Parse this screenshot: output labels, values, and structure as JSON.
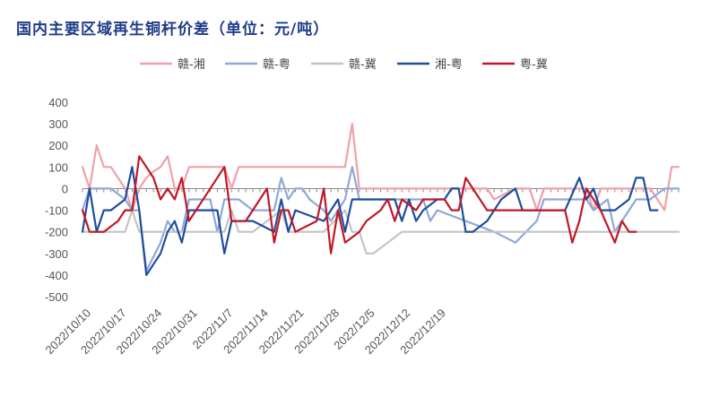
{
  "chart_data": {
    "type": "line",
    "title": "国内主要区域再生铜杆价差（单位：元/吨）",
    "legend_position": "top",
    "grid": false,
    "ylim": [
      -500,
      400
    ],
    "yticks": [
      400,
      300,
      200,
      100,
      0,
      -100,
      -200,
      -300,
      -400,
      -500
    ],
    "xtick_labels": [
      "2022/10/10",
      "2022/10/17",
      "2022/10/24",
      "2022/10/31",
      "2022/11/7",
      "2022/11/14",
      "2022/11/21",
      "2022/11/28",
      "2022/12/5",
      "2022/12/12",
      "2022/12/19"
    ],
    "series": [
      {
        "name": "赣-湘",
        "color": "#f0a0a8",
        "points": [
          [
            0,
            100
          ],
          [
            1,
            0
          ],
          [
            2,
            200
          ],
          [
            3,
            100
          ],
          [
            4,
            100
          ],
          [
            6,
            0
          ],
          [
            7,
            -100
          ],
          [
            8,
            0
          ],
          [
            9,
            50
          ],
          [
            10,
            80
          ],
          [
            11,
            100
          ],
          [
            12,
            150
          ],
          [
            13,
            0
          ],
          [
            14,
            0
          ],
          [
            15,
            100
          ],
          [
            20,
            100
          ],
          [
            21,
            0
          ],
          [
            22,
            100
          ],
          [
            37,
            100
          ],
          [
            38,
            300
          ],
          [
            39,
            0
          ],
          [
            54,
            0
          ],
          [
            57,
            0
          ],
          [
            58,
            -50
          ],
          [
            61,
            0
          ],
          [
            63,
            0
          ],
          [
            64,
            -100
          ],
          [
            65,
            0
          ],
          [
            71,
            0
          ],
          [
            72,
            -100
          ],
          [
            73,
            0
          ],
          [
            77,
            0
          ],
          [
            80,
            0
          ],
          [
            81,
            -50
          ],
          [
            82,
            -100
          ],
          [
            83,
            100
          ],
          [
            84,
            100
          ]
        ]
      },
      {
        "name": "赣-粤",
        "color": "#8fa8d8",
        "points": [
          [
            0,
            -100
          ],
          [
            1,
            0
          ],
          [
            4,
            0
          ],
          [
            6,
            -50
          ],
          [
            7,
            -100
          ],
          [
            8,
            -100
          ],
          [
            9,
            -380
          ],
          [
            11,
            -250
          ],
          [
            12,
            -150
          ],
          [
            13,
            -200
          ],
          [
            14,
            -200
          ],
          [
            15,
            -50
          ],
          [
            18,
            -50
          ],
          [
            19,
            -200
          ],
          [
            20,
            -50
          ],
          [
            22,
            -50
          ],
          [
            24,
            -100
          ],
          [
            27,
            -100
          ],
          [
            28,
            50
          ],
          [
            29,
            -50
          ],
          [
            30,
            0
          ],
          [
            31,
            0
          ],
          [
            32,
            -50
          ],
          [
            34,
            -100
          ],
          [
            35,
            -150
          ],
          [
            37,
            -50
          ],
          [
            38,
            100
          ],
          [
            39,
            -50
          ],
          [
            48,
            -50
          ],
          [
            49,
            -150
          ],
          [
            50,
            -100
          ],
          [
            58,
            -200
          ],
          [
            61,
            -250
          ],
          [
            64,
            -150
          ],
          [
            65,
            -50
          ],
          [
            71,
            -50
          ],
          [
            72,
            -100
          ],
          [
            74,
            -50
          ],
          [
            75,
            -200
          ],
          [
            77,
            -100
          ],
          [
            78,
            -50
          ],
          [
            79,
            -50
          ],
          [
            80,
            -50
          ],
          [
            82,
            0
          ],
          [
            84,
            0
          ]
        ]
      },
      {
        "name": "赣-冀",
        "color": "#c4c4c4",
        "points": [
          [
            0,
            -200
          ],
          [
            6,
            -200
          ],
          [
            7,
            -100
          ],
          [
            8,
            -200
          ],
          [
            20,
            -200
          ],
          [
            21,
            -100
          ],
          [
            22,
            -200
          ],
          [
            24,
            -200
          ],
          [
            28,
            -100
          ],
          [
            29,
            -200
          ],
          [
            34,
            -200
          ],
          [
            37,
            -100
          ],
          [
            38,
            -200
          ],
          [
            39,
            -200
          ],
          [
            40,
            -300
          ],
          [
            41,
            -300
          ],
          [
            43,
            -250
          ],
          [
            45,
            -200
          ],
          [
            84,
            -200
          ]
        ]
      },
      {
        "name": "湘-粤",
        "color": "#1f4e9c",
        "points": [
          [
            0,
            -200
          ],
          [
            1,
            0
          ],
          [
            2,
            -200
          ],
          [
            3,
            -100
          ],
          [
            4,
            -100
          ],
          [
            6,
            -50
          ],
          [
            7,
            100
          ],
          [
            8,
            -100
          ],
          [
            9,
            -400
          ],
          [
            11,
            -300
          ],
          [
            12,
            -200
          ],
          [
            13,
            -150
          ],
          [
            14,
            -250
          ],
          [
            15,
            -100
          ],
          [
            19,
            -100
          ],
          [
            20,
            -300
          ],
          [
            21,
            -150
          ],
          [
            24,
            -150
          ],
          [
            27,
            -200
          ],
          [
            28,
            -50
          ],
          [
            29,
            -200
          ],
          [
            30,
            -100
          ],
          [
            34,
            -150
          ],
          [
            35,
            -100
          ],
          [
            36,
            -50
          ],
          [
            37,
            -200
          ],
          [
            38,
            -50
          ],
          [
            39,
            -50
          ],
          [
            44,
            -50
          ],
          [
            45,
            -150
          ],
          [
            46,
            -50
          ],
          [
            47,
            -150
          ],
          [
            48,
            -100
          ],
          [
            50,
            -50
          ],
          [
            51,
            -50
          ],
          [
            52,
            0
          ],
          [
            53,
            0
          ],
          [
            54,
            -200
          ],
          [
            55,
            -200
          ],
          [
            57,
            -150
          ],
          [
            58,
            -100
          ],
          [
            59,
            -50
          ],
          [
            61,
            0
          ],
          [
            62,
            -100
          ],
          [
            68,
            -100
          ],
          [
            70,
            50
          ],
          [
            71,
            -50
          ],
          [
            72,
            0
          ],
          [
            73,
            -100
          ],
          [
            75,
            -100
          ],
          [
            77,
            -50
          ],
          [
            78,
            50
          ],
          [
            79,
            50
          ],
          [
            80,
            -100
          ],
          [
            81,
            -100
          ]
        ]
      },
      {
        "name": "粤-冀",
        "color": "#c01828",
        "points": [
          [
            0,
            -100
          ],
          [
            1,
            -200
          ],
          [
            3,
            -200
          ],
          [
            5,
            -150
          ],
          [
            6,
            -100
          ],
          [
            7,
            -100
          ],
          [
            8,
            150
          ],
          [
            10,
            50
          ],
          [
            11,
            -50
          ],
          [
            12,
            0
          ],
          [
            13,
            -50
          ],
          [
            14,
            50
          ],
          [
            15,
            -150
          ],
          [
            20,
            100
          ],
          [
            21,
            -150
          ],
          [
            23,
            -150
          ],
          [
            26,
            0
          ],
          [
            27,
            -250
          ],
          [
            28,
            -100
          ],
          [
            29,
            -100
          ],
          [
            30,
            -200
          ],
          [
            33,
            -150
          ],
          [
            34,
            0
          ],
          [
            35,
            -300
          ],
          [
            36,
            -100
          ],
          [
            37,
            -250
          ],
          [
            39,
            -200
          ],
          [
            40,
            -150
          ],
          [
            42,
            -100
          ],
          [
            43,
            -50
          ],
          [
            44,
            -150
          ],
          [
            45,
            -50
          ],
          [
            47,
            -100
          ],
          [
            48,
            -50
          ],
          [
            51,
            -50
          ],
          [
            52,
            -100
          ],
          [
            53,
            -100
          ],
          [
            54,
            50
          ],
          [
            55,
            0
          ],
          [
            57,
            -100
          ],
          [
            59,
            -100
          ],
          [
            61,
            -100
          ],
          [
            62,
            -100
          ],
          [
            68,
            -100
          ],
          [
            69,
            -250
          ],
          [
            70,
            -150
          ],
          [
            71,
            0
          ],
          [
            72,
            -50
          ],
          [
            73,
            -100
          ],
          [
            75,
            -250
          ],
          [
            76,
            -150
          ],
          [
            77,
            -200
          ],
          [
            78,
            -200
          ]
        ]
      }
    ]
  }
}
